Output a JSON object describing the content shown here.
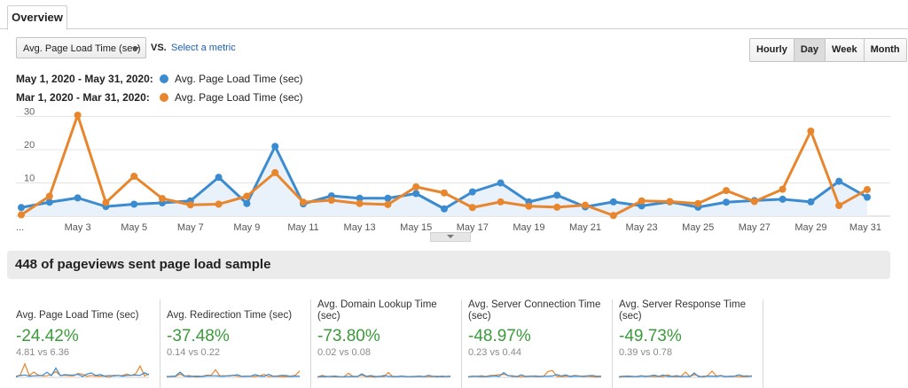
{
  "tabs": [
    {
      "label": "Overview",
      "active": true
    }
  ],
  "metric_selector": {
    "value": "Avg. Page Load Time (sec)",
    "vs_label": "VS.",
    "select_link": "Select a metric"
  },
  "period_buttons": [
    {
      "label": "Hourly",
      "active": false
    },
    {
      "label": "Day",
      "active": true
    },
    {
      "label": "Week",
      "active": false
    },
    {
      "label": "Month",
      "active": false
    }
  ],
  "legend": [
    {
      "range": "May 1, 2020 - May 31, 2020:",
      "series": "Avg. Page Load Time (sec)",
      "color": "#3b8bd0"
    },
    {
      "range": "Mar 1, 2020 - Mar 31, 2020:",
      "series": "Avg. Page Load Time (sec)",
      "color": "#e8862d"
    }
  ],
  "chart_data": {
    "type": "line",
    "x": [
      "...",
      "May 2",
      "May 3",
      "May 4",
      "May 5",
      "May 6",
      "May 7",
      "May 8",
      "May 9",
      "May 10",
      "May 11",
      "May 12",
      "May 13",
      "May 14",
      "May 15",
      "May 16",
      "May 17",
      "May 18",
      "May 19",
      "May 20",
      "May 21",
      "May 22",
      "May 23",
      "May 24",
      "May 25",
      "May 26",
      "May 27",
      "May 28",
      "May 29",
      "May 30",
      "May 31"
    ],
    "x_tick_labels": [
      "...",
      "May 3",
      "May 5",
      "May 7",
      "May 9",
      "May 11",
      "May 13",
      "May 15",
      "May 17",
      "May 19",
      "May 21",
      "May 23",
      "May 25",
      "May 27",
      "May 29",
      "May 31"
    ],
    "y_ticks": [
      10,
      20,
      30
    ],
    "ylim": [
      0,
      32
    ],
    "grid": true,
    "series": [
      {
        "name": "Avg. Page Load Time (sec)",
        "period": "May 1, 2020 - May 31, 2020",
        "color": "#3b8bd0",
        "values": [
          2.6,
          4.2,
          5.5,
          2.9,
          3.6,
          4.0,
          4.6,
          11.7,
          3.8,
          21.0,
          3.7,
          6.1,
          5.4,
          5.4,
          6.8,
          2.2,
          7.3,
          10.0,
          4.3,
          6.3,
          2.8,
          4.3,
          3.1,
          4.3,
          2.7,
          4.2,
          4.7,
          5.1,
          4.3,
          10.5,
          5.7
        ]
      },
      {
        "name": "Avg. Page Load Time (sec)",
        "period": "Mar 1, 2020 - Mar 31, 2020",
        "color": "#e8862d",
        "values": [
          0.4,
          6.0,
          30.4,
          4.1,
          12.0,
          5.3,
          3.4,
          3.6,
          6.0,
          13.1,
          4.2,
          4.8,
          3.8,
          3.5,
          8.8,
          7.0,
          2.6,
          4.3,
          3.0,
          2.7,
          3.3,
          0.2,
          4.6,
          4.4,
          3.8,
          7.7,
          4.4,
          8.1,
          25.6,
          3.2,
          8.0
        ]
      }
    ]
  },
  "summary": {
    "title": "448 of pageviews sent page load sample"
  },
  "cards": [
    {
      "label": "Avg. Page Load Time (sec)",
      "change": "-24.42%",
      "compare": "4.81 vs 6.36"
    },
    {
      "label": "Avg. Redirection Time (sec)",
      "change": "-37.48%",
      "compare": "0.14 vs 0.22"
    },
    {
      "label": "Avg. Domain Lookup Time (sec)",
      "change": "-73.80%",
      "compare": "0.02 vs 0.08"
    },
    {
      "label": "Avg. Server Connection Time (sec)",
      "change": "-48.97%",
      "compare": "0.23 vs 0.44"
    },
    {
      "label": "Avg. Server Response Time (sec)",
      "change": "-49.73%",
      "compare": "0.39 vs 0.78"
    }
  ]
}
